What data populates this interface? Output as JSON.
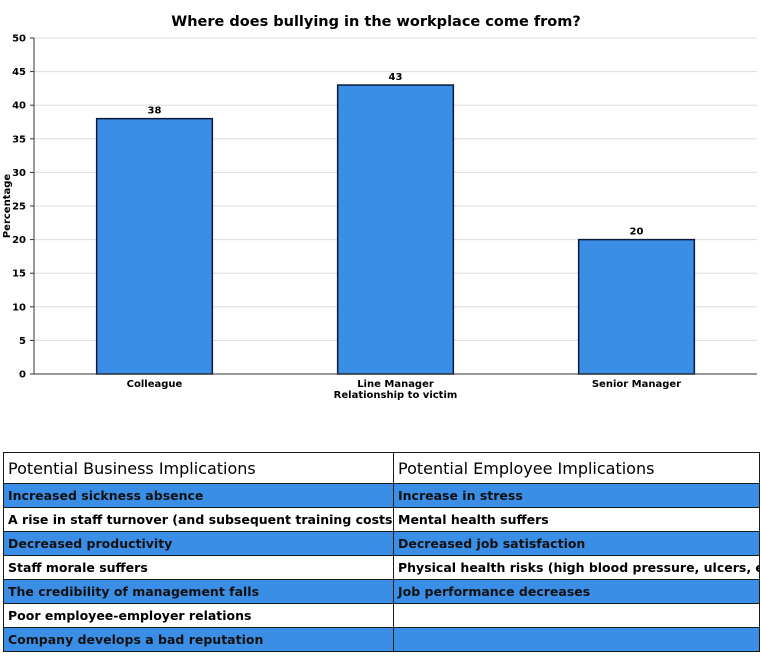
{
  "chart_data": {
    "type": "bar",
    "title": "Where does bullying in the workplace come from?",
    "xlabel": "Line Manager\nRelationship to victim",
    "xlabel_lines": [
      "Relationship to victim"
    ],
    "ylabel": "Percentage",
    "ylim": [
      0,
      50
    ],
    "yticks": [
      0,
      5,
      10,
      15,
      20,
      25,
      30,
      35,
      40,
      45,
      50
    ],
    "categories": [
      "Colleague",
      "Line Manager",
      "Senior Manager"
    ],
    "values": [
      38,
      43,
      20
    ],
    "bar_color": "#3a8ee6",
    "grid": true
  },
  "table": {
    "headers": [
      "Potential Business Implications",
      "Potential Employee Implications"
    ],
    "rows": [
      [
        "Increased sickness absence",
        "Increase in stress"
      ],
      [
        "A rise in staff turnover (and subsequent training costs)",
        "Mental health suffers"
      ],
      [
        "Decreased productivity",
        "Decreased job satisfaction"
      ],
      [
        "Staff morale suffers",
        "Physical health risks (high blood pressure, ulcers, etc)"
      ],
      [
        "The credibility of management falls",
        "Job performance decreases"
      ],
      [
        "Poor employee-employer relations",
        ""
      ],
      [
        "Company develops a bad reputation",
        ""
      ]
    ],
    "row_color": "#3a8ee6"
  }
}
